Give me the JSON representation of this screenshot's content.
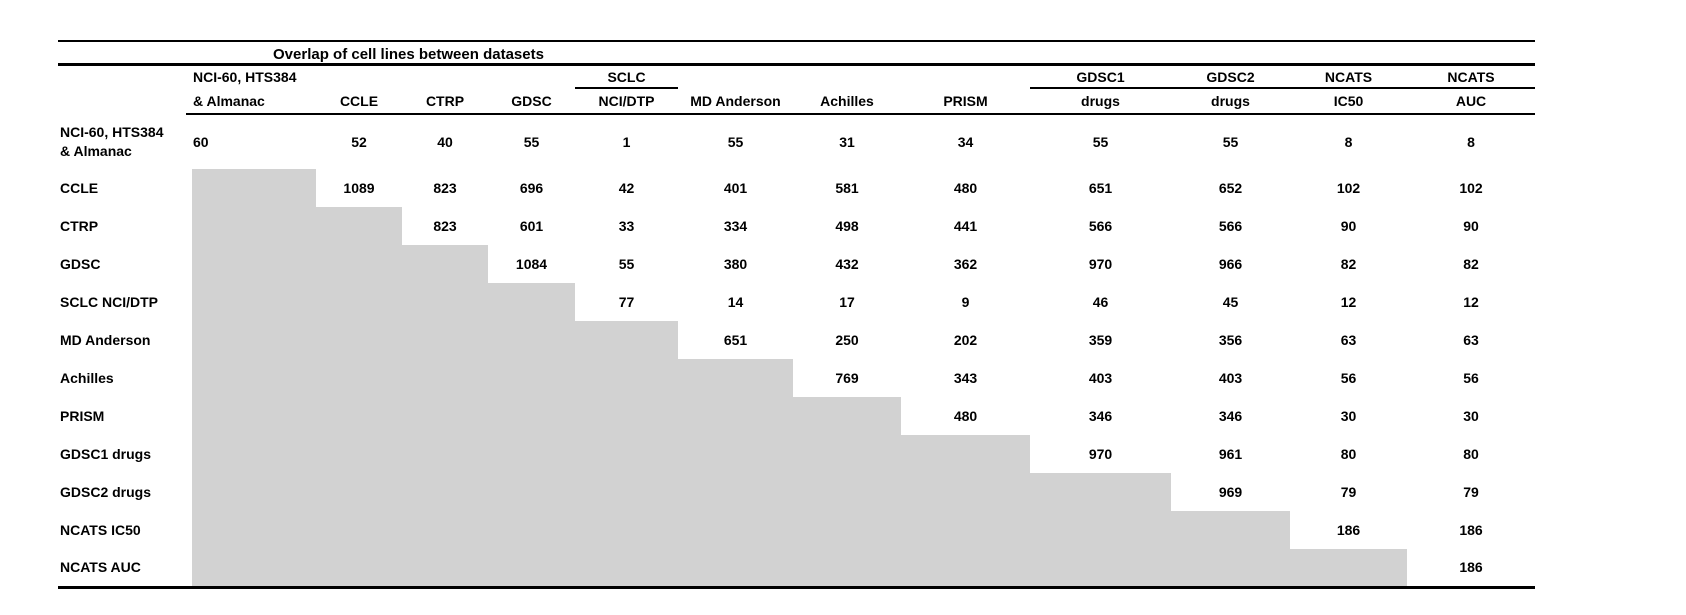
{
  "title": "Overlap of cell lines between datasets",
  "colors": {
    "shaded_cell": "#d2d2d2",
    "rule": "#000000",
    "text": "#000000"
  },
  "table": {
    "header_row1": [
      "",
      "NCI-60, HTS384",
      "",
      "",
      "",
      "SCLC",
      "",
      "",
      "",
      "GDSC1",
      "GDSC2",
      "NCATS",
      "NCATS"
    ],
    "header_row2": [
      "",
      "& Almanac",
      "CCLE",
      "CTRP",
      "GDSC",
      "NCI/DTP",
      "MD Anderson",
      "Achilles",
      "PRISM",
      "drugs",
      "drugs",
      "IC50",
      "AUC"
    ],
    "header_row1_underlined_cols": [
      5,
      9,
      10,
      11,
      12
    ],
    "rows": [
      {
        "label": "NCI-60, HTS384\n& Almanac",
        "values": [
          60,
          52,
          40,
          55,
          1,
          55,
          31,
          34,
          55,
          55,
          8,
          8
        ]
      },
      {
        "label": "CCLE",
        "values": [
          null,
          1089,
          823,
          696,
          42,
          401,
          581,
          480,
          651,
          652,
          102,
          102
        ]
      },
      {
        "label": "CTRP",
        "values": [
          null,
          null,
          823,
          601,
          33,
          334,
          498,
          441,
          566,
          566,
          90,
          90
        ]
      },
      {
        "label": "GDSC",
        "values": [
          null,
          null,
          null,
          1084,
          55,
          380,
          432,
          362,
          970,
          966,
          82,
          82
        ]
      },
      {
        "label": "SCLC NCI/DTP",
        "values": [
          null,
          null,
          null,
          null,
          77,
          14,
          17,
          9,
          46,
          45,
          12,
          12
        ]
      },
      {
        "label": "MD Anderson",
        "values": [
          null,
          null,
          null,
          null,
          null,
          651,
          250,
          202,
          359,
          356,
          63,
          63
        ]
      },
      {
        "label": "Achilles",
        "values": [
          null,
          null,
          null,
          null,
          null,
          null,
          769,
          343,
          403,
          403,
          56,
          56
        ]
      },
      {
        "label": "PRISM",
        "values": [
          null,
          null,
          null,
          null,
          null,
          null,
          null,
          480,
          346,
          346,
          30,
          30
        ]
      },
      {
        "label": "GDSC1 drugs",
        "values": [
          null,
          null,
          null,
          null,
          null,
          null,
          null,
          null,
          970,
          961,
          80,
          80
        ]
      },
      {
        "label": "GDSC2 drugs",
        "values": [
          null,
          null,
          null,
          null,
          null,
          null,
          null,
          null,
          null,
          969,
          79,
          79
        ]
      },
      {
        "label": "NCATS IC50",
        "values": [
          null,
          null,
          null,
          null,
          null,
          null,
          null,
          null,
          null,
          null,
          186,
          186
        ]
      },
      {
        "label": "NCATS AUC",
        "values": [
          null,
          null,
          null,
          null,
          null,
          null,
          null,
          null,
          null,
          null,
          null,
          186
        ]
      }
    ]
  }
}
